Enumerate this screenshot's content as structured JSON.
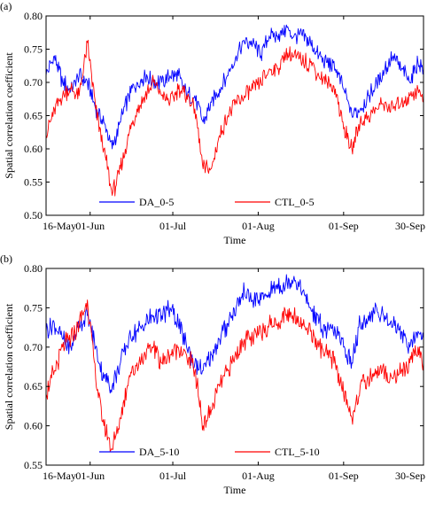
{
  "chart_data": [
    {
      "type": "line",
      "panel_label": "(a)",
      "title": "",
      "xlabel": "Time",
      "ylabel": "Spatial correlation coefficient",
      "xlim": [
        "2015-05-16",
        "2015-09-30"
      ],
      "xticks": [
        {
          "label": "16-May",
          "date": "2015-05-16"
        },
        {
          "label": "01-Jun",
          "date": "2015-06-01"
        },
        {
          "label": "01-Jul",
          "date": "2015-07-01"
        },
        {
          "label": "01-Aug",
          "date": "2015-08-01"
        },
        {
          "label": "01-Sep",
          "date": "2015-09-01"
        },
        {
          "label": "30-Sep",
          "date": "2015-09-30"
        }
      ],
      "ylim": [
        0.5,
        0.8
      ],
      "yticks": [
        "0.50",
        "0.55",
        "0.60",
        "0.65",
        "0.70",
        "0.75",
        "0.80"
      ],
      "grid": false,
      "legend_position": "bottom-center",
      "series": [
        {
          "name": "DA_0-5",
          "color": "#0000ff",
          "x": [
            "2015-05-16",
            "2015-05-19",
            "2015-05-22",
            "2015-05-25",
            "2015-05-28",
            "2015-05-31",
            "2015-06-03",
            "2015-06-06",
            "2015-06-09",
            "2015-06-12",
            "2015-06-15",
            "2015-06-18",
            "2015-06-21",
            "2015-06-24",
            "2015-06-27",
            "2015-06-30",
            "2015-07-03",
            "2015-07-06",
            "2015-07-09",
            "2015-07-12",
            "2015-07-15",
            "2015-07-18",
            "2015-07-21",
            "2015-07-24",
            "2015-07-27",
            "2015-07-30",
            "2015-08-02",
            "2015-08-05",
            "2015-08-08",
            "2015-08-11",
            "2015-08-14",
            "2015-08-17",
            "2015-08-20",
            "2015-08-23",
            "2015-08-26",
            "2015-08-29",
            "2015-09-01",
            "2015-09-04",
            "2015-09-07",
            "2015-09-10",
            "2015-09-13",
            "2015-09-16",
            "2015-09-19",
            "2015-09-22",
            "2015-09-25",
            "2015-09-28",
            "2015-09-30"
          ],
          "y": [
            0.71,
            0.74,
            0.7,
            0.69,
            0.71,
            0.7,
            0.66,
            0.64,
            0.6,
            0.64,
            0.68,
            0.7,
            0.71,
            0.7,
            0.7,
            0.71,
            0.71,
            0.68,
            0.68,
            0.64,
            0.67,
            0.69,
            0.71,
            0.74,
            0.76,
            0.76,
            0.74,
            0.77,
            0.77,
            0.78,
            0.77,
            0.77,
            0.76,
            0.74,
            0.73,
            0.72,
            0.69,
            0.65,
            0.66,
            0.68,
            0.7,
            0.72,
            0.74,
            0.72,
            0.7,
            0.73,
            0.72
          ]
        },
        {
          "name": "CTL_0-5",
          "color": "#ff0000",
          "x": [
            "2015-05-16",
            "2015-05-19",
            "2015-05-22",
            "2015-05-25",
            "2015-05-28",
            "2015-05-31",
            "2015-06-03",
            "2015-06-06",
            "2015-06-09",
            "2015-06-12",
            "2015-06-15",
            "2015-06-18",
            "2015-06-21",
            "2015-06-24",
            "2015-06-27",
            "2015-06-30",
            "2015-07-03",
            "2015-07-06",
            "2015-07-09",
            "2015-07-12",
            "2015-07-15",
            "2015-07-18",
            "2015-07-21",
            "2015-07-24",
            "2015-07-27",
            "2015-07-30",
            "2015-08-02",
            "2015-08-05",
            "2015-08-08",
            "2015-08-11",
            "2015-08-14",
            "2015-08-17",
            "2015-08-20",
            "2015-08-23",
            "2015-08-26",
            "2015-08-29",
            "2015-09-01",
            "2015-09-04",
            "2015-09-07",
            "2015-09-10",
            "2015-09-13",
            "2015-09-16",
            "2015-09-19",
            "2015-09-22",
            "2015-09-25",
            "2015-09-28",
            "2015-09-30"
          ],
          "y": [
            0.62,
            0.66,
            0.68,
            0.69,
            0.68,
            0.76,
            0.66,
            0.6,
            0.53,
            0.57,
            0.62,
            0.66,
            0.68,
            0.7,
            0.68,
            0.67,
            0.69,
            0.68,
            0.66,
            0.57,
            0.57,
            0.62,
            0.65,
            0.67,
            0.68,
            0.69,
            0.7,
            0.72,
            0.72,
            0.74,
            0.74,
            0.73,
            0.73,
            0.71,
            0.7,
            0.69,
            0.63,
            0.6,
            0.64,
            0.65,
            0.66,
            0.67,
            0.66,
            0.67,
            0.68,
            0.69,
            0.67
          ]
        }
      ]
    },
    {
      "type": "line",
      "panel_label": "(b)",
      "title": "",
      "xlabel": "Time",
      "ylabel": "Spatial correlation coefficient",
      "xlim": [
        "2015-05-16",
        "2015-09-30"
      ],
      "xticks": [
        {
          "label": "16-May",
          "date": "2015-05-16"
        },
        {
          "label": "01-Jun",
          "date": "2015-06-01"
        },
        {
          "label": "01-Jul",
          "date": "2015-07-01"
        },
        {
          "label": "01-Aug",
          "date": "2015-08-01"
        },
        {
          "label": "01-Sep",
          "date": "2015-09-01"
        },
        {
          "label": "30-Sep",
          "date": "2015-09-30"
        }
      ],
      "ylim": [
        0.55,
        0.8
      ],
      "yticks": [
        "0.55",
        "0.60",
        "0.65",
        "0.70",
        "0.75",
        "0.80"
      ],
      "grid": false,
      "legend_position": "bottom-center",
      "series": [
        {
          "name": "DA_5-10",
          "color": "#0000ff",
          "x": [
            "2015-05-16",
            "2015-05-19",
            "2015-05-22",
            "2015-05-25",
            "2015-05-28",
            "2015-05-31",
            "2015-06-03",
            "2015-06-06",
            "2015-06-09",
            "2015-06-12",
            "2015-06-15",
            "2015-06-18",
            "2015-06-21",
            "2015-06-24",
            "2015-06-27",
            "2015-06-30",
            "2015-07-03",
            "2015-07-06",
            "2015-07-09",
            "2015-07-12",
            "2015-07-15",
            "2015-07-18",
            "2015-07-21",
            "2015-07-24",
            "2015-07-27",
            "2015-07-30",
            "2015-08-02",
            "2015-08-05",
            "2015-08-08",
            "2015-08-11",
            "2015-08-14",
            "2015-08-17",
            "2015-08-20",
            "2015-08-23",
            "2015-08-26",
            "2015-08-29",
            "2015-09-01",
            "2015-09-04",
            "2015-09-07",
            "2015-09-10",
            "2015-09-13",
            "2015-09-16",
            "2015-09-19",
            "2015-09-22",
            "2015-09-25",
            "2015-09-28",
            "2015-09-30"
          ],
          "y": [
            0.72,
            0.73,
            0.71,
            0.7,
            0.73,
            0.74,
            0.7,
            0.66,
            0.65,
            0.68,
            0.71,
            0.72,
            0.73,
            0.74,
            0.74,
            0.75,
            0.73,
            0.7,
            0.68,
            0.67,
            0.69,
            0.71,
            0.73,
            0.75,
            0.77,
            0.76,
            0.76,
            0.77,
            0.78,
            0.78,
            0.79,
            0.77,
            0.75,
            0.73,
            0.72,
            0.72,
            0.7,
            0.68,
            0.73,
            0.74,
            0.75,
            0.74,
            0.73,
            0.72,
            0.7,
            0.72,
            0.71
          ]
        },
        {
          "name": "CTL_5-10",
          "color": "#ff0000",
          "x": [
            "2015-05-16",
            "2015-05-19",
            "2015-05-22",
            "2015-05-25",
            "2015-05-28",
            "2015-05-31",
            "2015-06-03",
            "2015-06-06",
            "2015-06-09",
            "2015-06-12",
            "2015-06-15",
            "2015-06-18",
            "2015-06-21",
            "2015-06-24",
            "2015-06-27",
            "2015-06-30",
            "2015-07-03",
            "2015-07-06",
            "2015-07-09",
            "2015-07-12",
            "2015-07-15",
            "2015-07-18",
            "2015-07-21",
            "2015-07-24",
            "2015-07-27",
            "2015-07-30",
            "2015-08-02",
            "2015-08-05",
            "2015-08-08",
            "2015-08-11",
            "2015-08-14",
            "2015-08-17",
            "2015-08-20",
            "2015-08-23",
            "2015-08-26",
            "2015-08-29",
            "2015-09-01",
            "2015-09-04",
            "2015-09-07",
            "2015-09-10",
            "2015-09-13",
            "2015-09-16",
            "2015-09-19",
            "2015-09-22",
            "2015-09-25",
            "2015-09-28",
            "2015-09-30"
          ],
          "y": [
            0.64,
            0.67,
            0.7,
            0.71,
            0.73,
            0.76,
            0.66,
            0.6,
            0.57,
            0.61,
            0.66,
            0.68,
            0.69,
            0.7,
            0.68,
            0.69,
            0.7,
            0.69,
            0.67,
            0.6,
            0.62,
            0.65,
            0.67,
            0.69,
            0.71,
            0.71,
            0.72,
            0.73,
            0.73,
            0.74,
            0.74,
            0.73,
            0.72,
            0.7,
            0.69,
            0.68,
            0.64,
            0.61,
            0.65,
            0.66,
            0.67,
            0.67,
            0.66,
            0.67,
            0.68,
            0.7,
            0.68
          ]
        }
      ]
    }
  ]
}
